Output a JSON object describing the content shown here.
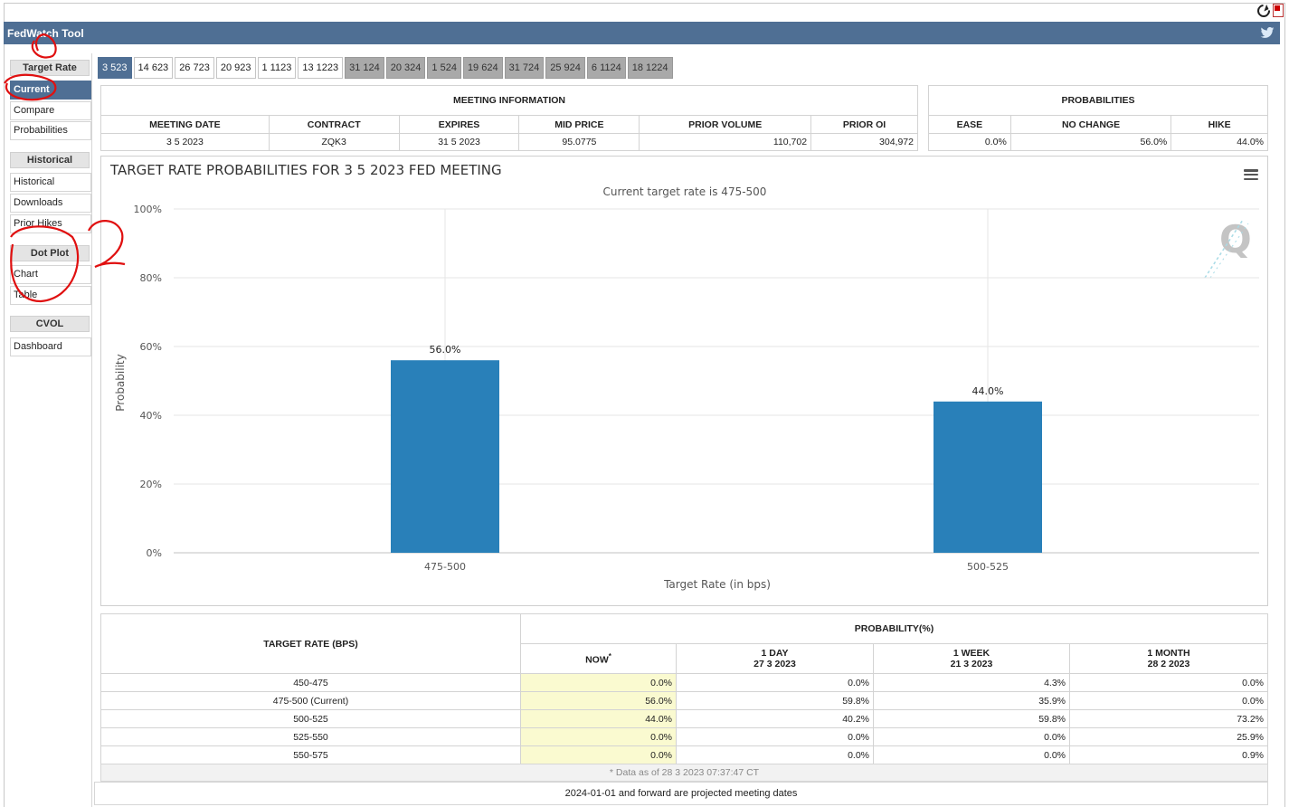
{
  "app": {
    "title": "FedWatch Tool"
  },
  "icons": {
    "refresh": "refresh-icon",
    "pdf": "pdf-icon",
    "twitter": "twitter-icon",
    "menu": "menu-icon",
    "watermark": "quikstrike-q-icon"
  },
  "colors": {
    "header": "#4f6f94",
    "bar": "#2980b9",
    "past_tab": "#a9a9a9",
    "now_highlight": "#fafad0"
  },
  "sidebar": {
    "target_rate": {
      "heading": "Target Rate",
      "items": [
        "Current",
        "Compare",
        "Probabilities"
      ]
    },
    "historical": {
      "heading": "Historical",
      "items": [
        "Historical",
        "Downloads",
        "Prior Hikes"
      ]
    },
    "dot_plot": {
      "heading": "Dot Plot",
      "items": [
        "Chart",
        "Table"
      ]
    },
    "cvol": {
      "heading": "CVOL",
      "items": [
        "Dashboard"
      ]
    },
    "active": "Current"
  },
  "tabs": [
    {
      "label": "3 523",
      "state": "active"
    },
    {
      "label": "14 623",
      "state": "future"
    },
    {
      "label": "26 723",
      "state": "future"
    },
    {
      "label": "20 923",
      "state": "future"
    },
    {
      "label": "1 1123",
      "state": "future"
    },
    {
      "label": "13 1223",
      "state": "future"
    },
    {
      "label": "31 124",
      "state": "past"
    },
    {
      "label": "20 324",
      "state": "past"
    },
    {
      "label": "1 524",
      "state": "past"
    },
    {
      "label": "19 624",
      "state": "past"
    },
    {
      "label": "31 724",
      "state": "past"
    },
    {
      "label": "25 924",
      "state": "past"
    },
    {
      "label": "6 1124",
      "state": "past"
    },
    {
      "label": "18 1224",
      "state": "past"
    }
  ],
  "meeting_info": {
    "heading": "MEETING INFORMATION",
    "columns": [
      "MEETING DATE",
      "CONTRACT",
      "EXPIRES",
      "MID PRICE",
      "PRIOR VOLUME",
      "PRIOR OI"
    ],
    "values": [
      "3 5 2023",
      "ZQK3",
      "31 5 2023",
      "95.0775",
      "110,702",
      "304,972"
    ]
  },
  "probabilities": {
    "heading": "PROBABILITIES",
    "columns": [
      "EASE",
      "NO CHANGE",
      "HIKE"
    ],
    "values": [
      "0.0%",
      "56.0%",
      "44.0%"
    ]
  },
  "chart_data": {
    "type": "bar",
    "title": "TARGET RATE PROBABILITIES FOR 3 5 2023 FED MEETING",
    "subtitle": "Current target rate is 475-500",
    "xlabel": "Target Rate (in bps)",
    "ylabel": "Probability",
    "categories": [
      "475-500",
      "500-525"
    ],
    "values": [
      56.0,
      44.0
    ],
    "data_labels": [
      "56.0%",
      "44.0%"
    ],
    "ylim": [
      0,
      100
    ],
    "yticks": [
      "0%",
      "20%",
      "40%",
      "60%",
      "80%",
      "100%"
    ],
    "grid": true
  },
  "prob_table": {
    "target_header": "TARGET RATE (BPS)",
    "group_header": "PROBABILITY(%)",
    "col_now": "NOW",
    "now_mark": "*",
    "col_1day": "1 DAY",
    "col_1day_date": "27 3 2023",
    "col_1week": "1 WEEK",
    "col_1week_date": "21 3 2023",
    "col_1month": "1 MONTH",
    "col_1month_date": "28 2 2023",
    "rows": [
      {
        "rate": "450-475",
        "now": "0.0%",
        "d1": "0.0%",
        "w1": "4.3%",
        "m1": "0.0%"
      },
      {
        "rate": "475-500 (Current)",
        "now": "56.0%",
        "d1": "59.8%",
        "w1": "35.9%",
        "m1": "0.0%"
      },
      {
        "rate": "500-525",
        "now": "44.0%",
        "d1": "40.2%",
        "w1": "59.8%",
        "m1": "73.2%"
      },
      {
        "rate": "525-550",
        "now": "0.0%",
        "d1": "0.0%",
        "w1": "0.0%",
        "m1": "25.9%"
      },
      {
        "rate": "550-575",
        "now": "0.0%",
        "d1": "0.0%",
        "w1": "0.0%",
        "m1": "0.9%"
      }
    ],
    "footnote": "* Data as of 28 3 2023 07:37:47 CT",
    "projected_note": "2024-01-01 and forward are projected meeting dates"
  }
}
